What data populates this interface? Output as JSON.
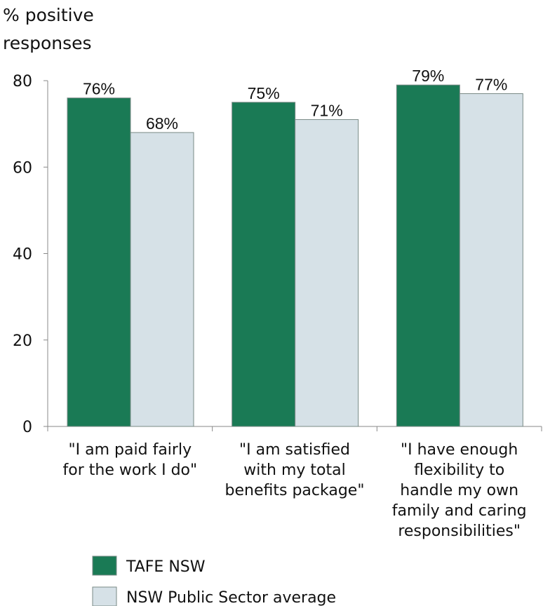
{
  "chart_data": {
    "type": "bar",
    "ylabel_lines": [
      "% positive",
      "responses"
    ],
    "ylim": [
      0,
      80
    ],
    "yticks": [
      0,
      20,
      40,
      60,
      80
    ],
    "categories": [
      [
        "\"I am paid fairly",
        "for the work I do\""
      ],
      [
        "\"I am satisfied",
        "with my total",
        "benefits package\""
      ],
      [
        "\"I have enough",
        "flexibility to",
        "handle my own",
        "family and caring",
        "responsibilities\""
      ]
    ],
    "series": [
      {
        "name": "TAFE NSW",
        "color": "#1a7a55",
        "values": [
          76,
          75,
          79
        ],
        "labels": [
          "76%",
          "75%",
          "79%"
        ]
      },
      {
        "name": "NSW Public Sector average",
        "color": "#d6e1e7",
        "values": [
          68,
          71,
          77
        ],
        "labels": [
          "68%",
          "71%",
          "77%"
        ]
      }
    ],
    "grid": false,
    "legend_position": "bottom-left"
  }
}
